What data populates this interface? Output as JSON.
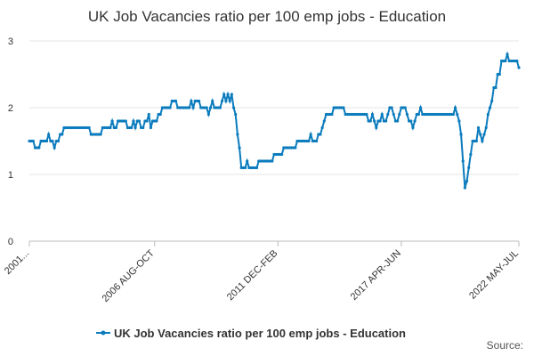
{
  "chart_data": {
    "type": "line",
    "title": "UK Job Vacancies ratio per 100 emp jobs - Education",
    "categories": [
      "2001...",
      null,
      null,
      null,
      null,
      null,
      null,
      null,
      null,
      null,
      null,
      null,
      null,
      null,
      null,
      null,
      null,
      null,
      null,
      null,
      null,
      null,
      null,
      null,
      null,
      null,
      null,
      null,
      null,
      null,
      null,
      null,
      null,
      null,
      null,
      null,
      null,
      null,
      null,
      null,
      null,
      null,
      null,
      null,
      null,
      null,
      null,
      null,
      null,
      null,
      null,
      null,
      null,
      null,
      null,
      null,
      null,
      null,
      null,
      null,
      null,
      null,
      null,
      null,
      null,
      "2006 AUG-OCT",
      null,
      null,
      null,
      null,
      null,
      null,
      null,
      null,
      null,
      null,
      null,
      null,
      null,
      null,
      null,
      null,
      null,
      null,
      null,
      null,
      null,
      null,
      null,
      null,
      null,
      null,
      null,
      null,
      null,
      null,
      null,
      null,
      null,
      null,
      null,
      null,
      null,
      null,
      null,
      null,
      null,
      null,
      null,
      null,
      null,
      null,
      null,
      null,
      null,
      null,
      null,
      null,
      null,
      null,
      null,
      null,
      null,
      null,
      null,
      null,
      null,
      null,
      null,
      "2011 DEC-FEB",
      null,
      null,
      null,
      null,
      null,
      null,
      null,
      null,
      null,
      null,
      null,
      null,
      null,
      null,
      null,
      null,
      null,
      null,
      null,
      null,
      null,
      null,
      null,
      null,
      null,
      null,
      null,
      null,
      null,
      null,
      null,
      null,
      null,
      null,
      null,
      null,
      null,
      null,
      null,
      null,
      null,
      null,
      null,
      null,
      null,
      null,
      null,
      null,
      null,
      null,
      null,
      null,
      null,
      null,
      null,
      null,
      null,
      null,
      null,
      null,
      null,
      null,
      null,
      "2017 APR-JUN",
      null,
      null,
      null,
      null,
      null,
      null,
      null,
      null,
      null,
      null,
      null,
      null,
      null,
      null,
      null,
      null,
      null,
      null,
      null,
      null,
      null,
      null,
      null,
      null,
      null,
      null,
      null,
      null,
      null,
      null,
      null,
      null,
      null,
      null,
      null,
      null,
      null,
      null,
      null,
      null,
      null,
      null,
      null,
      null,
      null,
      null,
      null,
      null,
      null,
      null,
      null,
      null,
      null,
      null,
      null,
      null,
      null,
      null,
      null,
      null,
      "2022 MAY-JUL"
    ],
    "series": [
      {
        "name": "UK Job Vacancies ratio per 100 emp jobs - Education",
        "color": "#0a7bbd",
        "values": [
          1.5,
          1.5,
          1.5,
          1.4,
          1.4,
          1.4,
          1.5,
          1.5,
          1.5,
          1.5,
          1.6,
          1.5,
          1.5,
          1.4,
          1.5,
          1.5,
          1.6,
          1.6,
          1.7,
          1.7,
          1.7,
          1.7,
          1.7,
          1.7,
          1.7,
          1.7,
          1.7,
          1.7,
          1.7,
          1.7,
          1.7,
          1.7,
          1.6,
          1.6,
          1.6,
          1.6,
          1.6,
          1.6,
          1.7,
          1.7,
          1.7,
          1.7,
          1.7,
          1.8,
          1.7,
          1.7,
          1.8,
          1.8,
          1.8,
          1.8,
          1.8,
          1.7,
          1.7,
          1.7,
          1.8,
          1.7,
          1.8,
          1.8,
          1.7,
          1.7,
          1.8,
          1.8,
          1.9,
          1.7,
          1.8,
          1.8,
          1.8,
          1.9,
          1.9,
          2.0,
          2.0,
          2.0,
          2.0,
          2.0,
          2.1,
          2.1,
          2.1,
          2.0,
          2.0,
          2.0,
          2.0,
          2.0,
          2.0,
          2.0,
          2.1,
          2.0,
          2.1,
          2.1,
          2.1,
          2.0,
          2.0,
          2.0,
          2.0,
          1.9,
          2.0,
          2.1,
          2.0,
          2.0,
          2.0,
          2.0,
          2.1,
          2.2,
          2.1,
          2.2,
          2.1,
          2.2,
          2.0,
          1.9,
          1.6,
          1.4,
          1.1,
          1.1,
          1.1,
          1.2,
          1.1,
          1.1,
          1.1,
          1.1,
          1.1,
          1.2,
          1.2,
          1.2,
          1.2,
          1.2,
          1.2,
          1.2,
          1.2,
          1.3,
          1.3,
          1.3,
          1.3,
          1.3,
          1.4,
          1.4,
          1.4,
          1.4,
          1.4,
          1.4,
          1.4,
          1.5,
          1.5,
          1.5,
          1.5,
          1.5,
          1.5,
          1.5,
          1.6,
          1.5,
          1.5,
          1.5,
          1.6,
          1.6,
          1.7,
          1.8,
          1.9,
          1.9,
          1.9,
          1.9,
          2.0,
          2.0,
          2.0,
          2.0,
          2.0,
          2.0,
          1.9,
          1.9,
          1.9,
          1.9,
          1.9,
          1.9,
          1.9,
          1.9,
          1.9,
          1.9,
          1.9,
          1.9,
          1.8,
          1.8,
          1.9,
          1.8,
          1.7,
          1.8,
          1.8,
          1.9,
          1.8,
          1.8,
          1.9,
          2.0,
          2.0,
          1.9,
          1.8,
          1.8,
          1.9,
          2.0,
          2.0,
          2.0,
          1.9,
          1.8,
          1.8,
          1.7,
          1.8,
          1.9,
          1.9,
          2.0,
          1.9,
          1.9,
          1.9,
          1.9,
          1.9,
          1.9,
          1.9,
          1.9,
          1.9,
          1.9,
          1.9,
          1.9,
          1.9,
          1.9,
          1.9,
          1.9,
          1.9,
          2.0,
          1.9,
          1.8,
          1.6,
          1.2,
          0.8,
          0.9,
          1.1,
          1.3,
          1.5,
          1.5,
          1.5,
          1.7,
          1.6,
          1.5,
          1.6,
          1.7,
          1.9,
          2.0,
          2.1,
          2.3,
          2.3,
          2.5,
          2.5,
          2.7,
          2.7,
          2.7,
          2.8,
          2.7,
          2.7,
          2.7,
          2.7,
          2.7,
          2.6
        ]
      }
    ],
    "ylim": [
      0,
      3
    ],
    "yticks": [
      0,
      1,
      2,
      3
    ],
    "grid": true,
    "source": "Source:"
  }
}
